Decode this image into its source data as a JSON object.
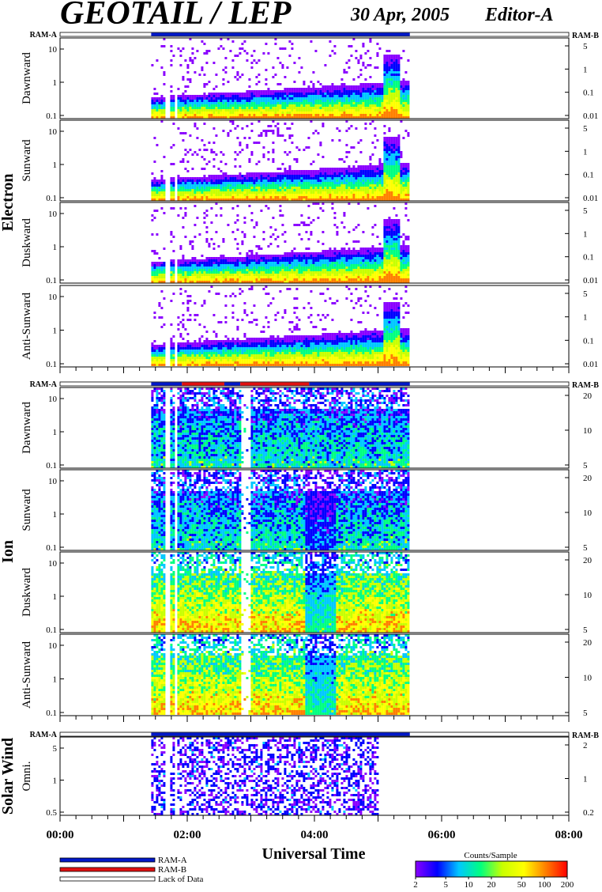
{
  "header": {
    "title": "GEOTAIL / LEP",
    "date": "30 Apr, 2005",
    "editor": "Editor-A"
  },
  "colors": {
    "ram_a": "#0018c8",
    "ram_b": "#e01010",
    "lack_of_data": "#ffffff",
    "colorbar_stops": [
      "#8a00ff",
      "#0000ff",
      "#00c8ff",
      "#00ff80",
      "#c8ff00",
      "#ffff00",
      "#ff8000",
      "#ff0000"
    ]
  },
  "chart_data": {
    "type": "heatmap",
    "xlabel": "Universal Time",
    "x_range": [
      "00:00",
      "08:00"
    ],
    "x_ticks": [
      "00:00",
      "02:00",
      "04:00",
      "06:00",
      "08:00"
    ],
    "data_coverage": {
      "start": "01:26",
      "end": "05:30",
      "gaps": [
        [
          "01:38",
          "01:42"
        ],
        [
          "01:47",
          "01:49"
        ]
      ]
    },
    "groups": [
      {
        "name": "Electron",
        "ram_left": "RAM-A",
        "ram_right": "RAM-B",
        "ram_bar": [
          {
            "from": "01:26",
            "to": "05:30",
            "mode": "RAM-A"
          }
        ],
        "panels": [
          {
            "label": "Dawnward",
            "left_ticks": [
              "10",
              "1",
              "0.1"
            ],
            "right_ticks": [
              "5",
              "1",
              "0.1",
              "0.01"
            ]
          },
          {
            "label": "Sunward",
            "left_ticks": [
              "10",
              "1",
              "0.1"
            ],
            "right_ticks": [
              "5",
              "1",
              "0.1",
              "0.01"
            ]
          },
          {
            "label": "Duskward",
            "left_ticks": [
              "10",
              "1",
              "0.1"
            ],
            "right_ticks": [
              "5",
              "1",
              "0.1",
              "0.01"
            ]
          },
          {
            "label": "Anti-Sunward",
            "left_ticks": [
              "10",
              "1",
              "0.1"
            ],
            "right_ticks": [
              "5",
              "1",
              "0.1",
              "0.01"
            ]
          }
        ]
      },
      {
        "name": "Ion",
        "ram_left": "RAM-A",
        "ram_right": "RAM-B",
        "ram_bar": [
          {
            "from": "01:26",
            "to": "01:55",
            "mode": "RAM-A"
          },
          {
            "from": "01:55",
            "to": "02:35",
            "mode": "RAM-B"
          },
          {
            "from": "02:35",
            "to": "02:50",
            "mode": "RAM-A"
          },
          {
            "from": "02:50",
            "to": "03:55",
            "mode": "RAM-B"
          },
          {
            "from": "03:55",
            "to": "05:30",
            "mode": "RAM-A"
          }
        ],
        "panels": [
          {
            "label": "Dawnward",
            "left_ticks": [
              "10",
              "1",
              "0.1"
            ],
            "right_ticks": [
              "20",
              "10",
              "5"
            ]
          },
          {
            "label": "Sunward",
            "left_ticks": [
              "10",
              "1",
              "0.1"
            ],
            "right_ticks": [
              "20",
              "10",
              "5"
            ]
          },
          {
            "label": "Duskward",
            "left_ticks": [
              "10",
              "1",
              "0.1"
            ],
            "right_ticks": [
              "20",
              "10",
              "5"
            ]
          },
          {
            "label": "Anti-Sunward",
            "left_ticks": [
              "10",
              "1",
              "0.1"
            ],
            "right_ticks": [
              "20",
              "10",
              "5"
            ]
          }
        ]
      },
      {
        "name": "Solar Wind",
        "ram_left": "RAM-A",
        "ram_right": "RAM-B",
        "ram_bar": [
          {
            "from": "01:26",
            "to": "05:30",
            "mode": "RAM-A"
          }
        ],
        "panels": [
          {
            "label": "Omni.",
            "left_ticks": [
              "5",
              "1",
              "0.5"
            ],
            "right_ticks": [
              "2",
              "1",
              "0.2"
            ]
          }
        ]
      }
    ],
    "legend": [
      {
        "label": "RAM-A",
        "color": "#0018c8"
      },
      {
        "label": "RAM-B",
        "color": "#e01010"
      },
      {
        "label": "Lack of Data",
        "color": "#ffffff"
      }
    ],
    "colorbar": {
      "title": "Counts/Sample",
      "ticks": [
        "2",
        "5",
        "10",
        "20",
        "50",
        "100",
        "200"
      ]
    }
  }
}
